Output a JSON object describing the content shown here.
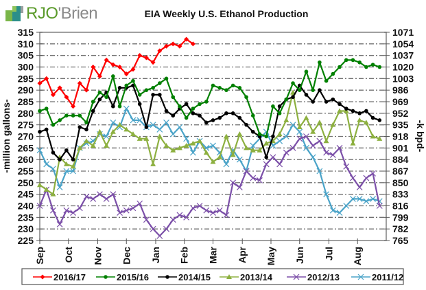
{
  "logo": {
    "text_prefix": "RJO",
    "text_suffix": "'Brien"
  },
  "chart_data": {
    "type": "line",
    "title": "EIA Weekly U.S. Ethanol Production",
    "ylabel_left": "-million gallons-",
    "ylabel_right": "-k bpd-",
    "ylim": [
      225,
      315
    ],
    "yticks_left": [
      225,
      230,
      235,
      240,
      245,
      250,
      255,
      260,
      265,
      270,
      275,
      280,
      285,
      290,
      295,
      300,
      305,
      310,
      315
    ],
    "yticks_right": [
      765,
      782,
      799,
      816,
      833,
      850,
      867,
      884,
      901,
      918,
      935,
      952,
      969,
      986,
      1003,
      1020,
      1037,
      1054,
      1071
    ],
    "xlim": [
      0,
      52
    ],
    "x_categories": [
      "Sep",
      "Oct",
      "Nov",
      "Dec",
      "Jan",
      "Feb",
      "Mar",
      "Apr",
      "May",
      "Jun",
      "Jul",
      "Aug"
    ],
    "x_category_weeks": [
      0,
      4.3,
      8.7,
      13,
      17.4,
      21.7,
      26,
      30.4,
      34.7,
      39,
      43.4,
      47.7
    ],
    "grid": true,
    "legend": "bottom",
    "series": [
      {
        "name": "2016/17",
        "color": "#ff0000",
        "marker": "diamond",
        "values": [
          293,
          295,
          288,
          291,
          287,
          283,
          293,
          290,
          300,
          296,
          303,
          301,
          300,
          297,
          299,
          305,
          304,
          302,
          307,
          309,
          310,
          309,
          312,
          310
        ]
      },
      {
        "name": "2015/16",
        "color": "#008000",
        "marker": "circle",
        "values": [
          281,
          282,
          275,
          277,
          279,
          279,
          279,
          276,
          285,
          289,
          287,
          296,
          283,
          292,
          294,
          288,
          290,
          291,
          293,
          295,
          287,
          283,
          278,
          282,
          284,
          285,
          292,
          291,
          290,
          292,
          291,
          287,
          279,
          271,
          270,
          283,
          280,
          286,
          293,
          290,
          298,
          290,
          302,
          294,
          297,
          300,
          303,
          303,
          302,
          300,
          301,
          300
        ]
      },
      {
        "name": "2014/15",
        "color": "#000000",
        "marker": "circle",
        "values": [
          272,
          273,
          263,
          260,
          264,
          260,
          274,
          273,
          281,
          286,
          289,
          283,
          291,
          291,
          292,
          284,
          274,
          288,
          288,
          281,
          279,
          282,
          284,
          280,
          279,
          276,
          277,
          278,
          280,
          280,
          278,
          275,
          272,
          270,
          261,
          270,
          283,
          286,
          287,
          292,
          288,
          285,
          290,
          285,
          286,
          284,
          282,
          281,
          280,
          281,
          278,
          277
        ]
      },
      {
        "name": "2013/14",
        "color": "#8db040",
        "marker": "triangle",
        "values": [
          249,
          247,
          245,
          261,
          258,
          257,
          265,
          268,
          266,
          272,
          266,
          272,
          275,
          273,
          271,
          269,
          269,
          258,
          270,
          266,
          264,
          265,
          266,
          267,
          268,
          263,
          259,
          261,
          270,
          262,
          271,
          265,
          264,
          264,
          267,
          268,
          271,
          277,
          289,
          274,
          278,
          272,
          276,
          268,
          275,
          281,
          281,
          267,
          277,
          276,
          270,
          269
        ]
      },
      {
        "name": "2012/13",
        "color": "#7b4fa8",
        "marker": "x",
        "values": [
          240,
          247,
          238,
          232,
          238,
          237,
          239,
          244,
          243,
          245,
          243,
          245,
          237,
          238,
          239,
          241,
          234,
          230,
          227,
          230,
          234,
          236,
          235,
          239,
          240,
          238,
          237,
          238,
          236,
          250,
          248,
          255,
          252,
          251,
          258,
          261,
          258,
          263,
          265,
          269,
          270,
          266,
          268,
          263,
          262,
          265,
          257,
          252,
          248,
          252,
          254,
          240
        ]
      },
      {
        "name": "2011/12",
        "color": "#4aa3c8",
        "marker": "x",
        "values": [
          264,
          258,
          256,
          248,
          255,
          255,
          265,
          267,
          268,
          271,
          270,
          276,
          274,
          282,
          277,
          277,
          274,
          275,
          273,
          276,
          271,
          274,
          269,
          263,
          268,
          265,
          266,
          263,
          258,
          264,
          260,
          255,
          266,
          269,
          272,
          266,
          268,
          270,
          275,
          272,
          265,
          261,
          255,
          245,
          238,
          237,
          240,
          243,
          243,
          242,
          243,
          242
        ]
      }
    ]
  }
}
